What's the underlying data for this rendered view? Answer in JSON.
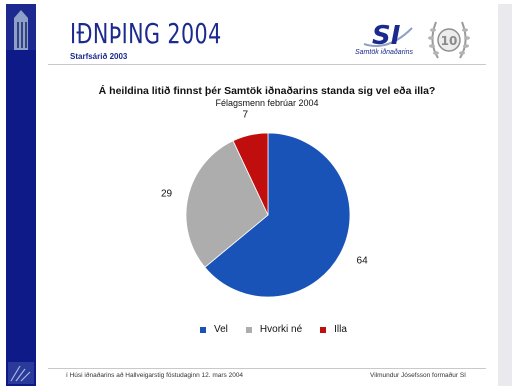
{
  "header": {
    "logo_title": "IÐNÞING 2004",
    "logo_subtitle": "Starfsárið 2003",
    "org_logo_text": "SI",
    "org_logo_caption": "Samtök iðnaðarins",
    "emblem_number": "10"
  },
  "footer": {
    "left": "í Húsi iðnaðarins að Hallveigarstig föstudaginn 12. mars 2004",
    "right": "Vilmundur Jósefsson formaður SI"
  },
  "colors": {
    "Vel": "#1a53b8",
    "Hvorki né": "#adadad",
    "Illa": "#c00e0e"
  },
  "chart_data": {
    "type": "pie",
    "title": "Á heildina litið finnst þér Samtök iðnaðarins standa sig vel eða illa?",
    "subtitle": "Félagsmenn febrúar 2004",
    "categories": [
      "Vel",
      "Hvorki né",
      "Illa"
    ],
    "values": [
      64,
      29,
      7
    ],
    "data_labels": [
      "64",
      "29",
      "7"
    ],
    "legend_placement": "bottom"
  }
}
